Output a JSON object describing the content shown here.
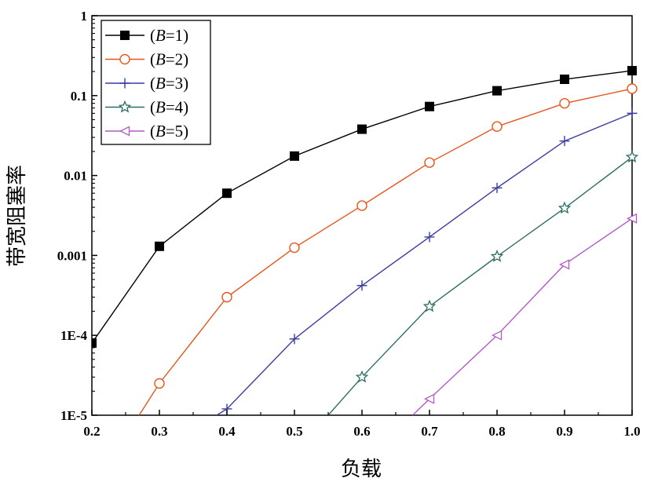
{
  "chart_data": {
    "type": "line",
    "xlabel": "负载",
    "ylabel": "带宽阻塞率",
    "xlim": [
      0.2,
      1.0
    ],
    "ylim": [
      1e-05,
      1
    ],
    "yscale": "log",
    "x_ticks": [
      "0.2",
      "0.3",
      "0.4",
      "0.5",
      "0.6",
      "0.7",
      "0.8",
      "0.9",
      "1.0"
    ],
    "y_ticks": [
      "1E-5",
      "1E-4",
      "0.001",
      "0.01",
      "0.1",
      "1"
    ],
    "legend_placement": "top-left",
    "grid": false,
    "series": [
      {
        "name": "(B=1)",
        "name_prefix": "(",
        "name_var": "B",
        "name_suffix": "=1)",
        "color": "#000000",
        "marker": "filled-square",
        "x": [
          0.2,
          0.3,
          0.4,
          0.5,
          0.6,
          0.7,
          0.8,
          0.9,
          1.0
        ],
        "y": [
          8e-05,
          0.0013,
          0.006,
          0.0175,
          0.038,
          0.073,
          0.115,
          0.16,
          0.205
        ]
      },
      {
        "name": "(B=2)",
        "name_prefix": "(",
        "name_var": "B",
        "name_suffix": "=2)",
        "color": "#e8551c",
        "marker": "open-circle",
        "x": [
          0.27,
          0.3,
          0.4,
          0.5,
          0.6,
          0.7,
          0.8,
          0.9,
          1.0
        ],
        "y": [
          1e-05,
          2.5e-05,
          0.0003,
          0.00125,
          0.0042,
          0.0145,
          0.041,
          0.08,
          0.122
        ]
      },
      {
        "name": "(B=3)",
        "name_prefix": "(",
        "name_var": "B",
        "name_suffix": "=3)",
        "color": "#3b3ba0",
        "marker": "plus",
        "x": [
          0.385,
          0.4,
          0.5,
          0.6,
          0.7,
          0.8,
          0.9,
          1.0
        ],
        "y": [
          1e-05,
          1.2e-05,
          9e-05,
          0.00042,
          0.0017,
          0.007,
          0.027,
          0.06
        ]
      },
      {
        "name": "(B=4)",
        "name_prefix": "(",
        "name_var": "B",
        "name_suffix": "=4)",
        "color": "#2d6e63",
        "marker": "open-star",
        "x": [
          0.55,
          0.6,
          0.7,
          0.8,
          0.9,
          1.0
        ],
        "y": [
          1e-05,
          3e-05,
          0.00023,
          0.00097,
          0.0039,
          0.017
        ]
      },
      {
        "name": "(B=5)",
        "name_prefix": "(",
        "name_var": "B",
        "name_suffix": "=5)",
        "color": "#b25ac8",
        "marker": "open-left-triangle",
        "x": [
          0.675,
          0.7,
          0.8,
          0.9,
          1.0
        ],
        "y": [
          1e-05,
          1.6e-05,
          0.0001,
          0.00077,
          0.0029
        ]
      }
    ]
  }
}
